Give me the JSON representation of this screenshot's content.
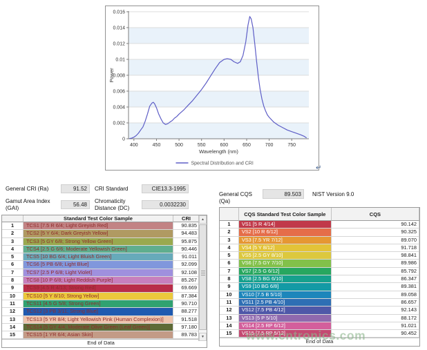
{
  "watermark": "www.cntronics.com",
  "chart": {
    "return_mark": "↵"
  },
  "chart_data": {
    "type": "line",
    "title": "",
    "xlabel": "Wavelength (nm)",
    "ylabel": "Power",
    "xlim": [
      388,
      788
    ],
    "ylim": [
      0,
      0.016
    ],
    "x_ticks": [
      400,
      450,
      500,
      550,
      600,
      650,
      700,
      750
    ],
    "y_ticks": [
      0,
      0.002,
      0.004,
      0.006,
      0.008,
      0.01,
      0.012,
      0.014,
      0.016
    ],
    "legend": [
      "Spectral Distribution and CRI"
    ],
    "legend_position": "bottom-center",
    "grid": "horizontal",
    "line_color": "#5d5dc6",
    "band_color": "#e9f2fa",
    "series": [
      {
        "name": "Spectral Distribution and CRI",
        "points": [
          [
            390,
            3e-05
          ],
          [
            395,
            8e-05
          ],
          [
            400,
            0.0002
          ],
          [
            405,
            0.0004
          ],
          [
            410,
            0.0007
          ],
          [
            415,
            0.0011
          ],
          [
            420,
            0.0015
          ],
          [
            425,
            0.0022
          ],
          [
            430,
            0.0031
          ],
          [
            435,
            0.0041
          ],
          [
            440,
            0.0045
          ],
          [
            443,
            0.0046
          ],
          [
            446,
            0.0044
          ],
          [
            450,
            0.0039
          ],
          [
            455,
            0.0031
          ],
          [
            460,
            0.0025
          ],
          [
            465,
            0.002
          ],
          [
            470,
            0.0018
          ],
          [
            475,
            0.0019
          ],
          [
            480,
            0.0021
          ],
          [
            485,
            0.0023
          ],
          [
            490,
            0.0026
          ],
          [
            495,
            0.0028
          ],
          [
            500,
            0.0031
          ],
          [
            510,
            0.0036
          ],
          [
            520,
            0.0042
          ],
          [
            530,
            0.0048
          ],
          [
            540,
            0.0055
          ],
          [
            550,
            0.0062
          ],
          [
            560,
            0.007
          ],
          [
            570,
            0.0079
          ],
          [
            580,
            0.0088
          ],
          [
            590,
            0.0096
          ],
          [
            600,
            0.01
          ],
          [
            607,
            0.0101
          ],
          [
            615,
            0.01
          ],
          [
            622,
            0.0097
          ],
          [
            630,
            0.0095
          ],
          [
            636,
            0.0097
          ],
          [
            642,
            0.0105
          ],
          [
            648,
            0.0122
          ],
          [
            653,
            0.0143
          ],
          [
            657,
            0.0154
          ],
          [
            660,
            0.0151
          ],
          [
            664,
            0.014
          ],
          [
            668,
            0.012
          ],
          [
            672,
            0.0098
          ],
          [
            676,
            0.0078
          ],
          [
            680,
            0.0062
          ],
          [
            684,
            0.005
          ],
          [
            688,
            0.0041
          ],
          [
            692,
            0.0035
          ],
          [
            696,
            0.003
          ],
          [
            700,
            0.0027
          ],
          [
            710,
            0.0021
          ],
          [
            720,
            0.0017
          ],
          [
            730,
            0.0014
          ],
          [
            740,
            0.0011
          ],
          [
            750,
            0.0009
          ],
          [
            760,
            0.0007
          ],
          [
            770,
            0.0005
          ],
          [
            778,
            0.0003
          ],
          [
            783,
            0.0001
          ]
        ]
      }
    ]
  },
  "summary": {
    "general_cri_label": "General CRI (Ra)",
    "general_cri_value": "91.52",
    "cri_standard_label": "CRI Standard",
    "cri_standard_value": "CIE13.3-1995",
    "gamut_label": "Gamut Area Index (GAI)",
    "gamut_value": "56.48",
    "chromaticity_label": "Chromaticity Distance (DC)",
    "chromaticity_value": "0.0032230",
    "general_cqs_label": "General CQS (Qa)",
    "general_cqs_value": "89.503",
    "nist_version": "NIST Version 9.0"
  },
  "cri_table": {
    "headers": [
      "",
      "Standard Test Color Sample",
      "CRI"
    ],
    "end_of_data": "End of Data",
    "text_color": "#8f2a2a",
    "rows": [
      {
        "num": "1",
        "sample": "TCS1 [7.5 R 6/4; Light Greyish Red]",
        "value": "90.835",
        "color": "#c28384"
      },
      {
        "num": "2",
        "sample": "TCS2 [5 Y 6/4; Dark Greyish Yellow]",
        "value": "94.483",
        "color": "#b09a62"
      },
      {
        "num": "3",
        "sample": "TCS3 [5 GY 6/8; Strong Yellow Green]",
        "value": "95.875",
        "color": "#99a94e"
      },
      {
        "num": "4",
        "sample": "TCS4 [2.5 G 6/6; Moderate Yellowish Green]",
        "value": "90.446",
        "color": "#5fae8e"
      },
      {
        "num": "5",
        "sample": "TCS5 [10 BG 6/4; Light Bluish Green]",
        "value": "91.011",
        "color": "#67aaba"
      },
      {
        "num": "6",
        "sample": "TCS6 [5 PB 6/8; Light Blue]",
        "value": "92.099",
        "color": "#8097dc"
      },
      {
        "num": "7",
        "sample": "TCS7 [2.5 P 6/8; Light Violet]",
        "value": "92.108",
        "color": "#9f90de"
      },
      {
        "num": "8",
        "sample": "TCS8 [10 P 6/8; Light Reddish Purple]",
        "value": "85.267",
        "color": "#c77fbd"
      },
      {
        "num": "9",
        "sample": "TCS9 [4.5 R 4/13; Strong Red]",
        "value": "69.669",
        "color": "#b92d49"
      },
      {
        "num": "10",
        "sample": "TCS10 [5 Y 8/10; Strong Yellow]",
        "value": "87.384",
        "color": "#ecc93c"
      },
      {
        "num": "11",
        "sample": "TCS11 [4.5 G 5/8; Strong Green]",
        "value": "90.710",
        "color": "#30a271"
      },
      {
        "num": "12",
        "sample": "TCS12 [3 PB 3/11; Strong Blue]",
        "value": "88.277",
        "color": "#1f5ab0"
      },
      {
        "num": "13",
        "sample": "TCS13 [5 YR 8/4; Light Yellowish Pink (Human Complexion)]",
        "value": "91.518",
        "color": "#edc4ad"
      },
      {
        "num": "14",
        "sample": "TCS14 [5 GY 4/4; Moderate Olive Green (Leaf Green)]",
        "value": "97.180",
        "color": "#5e6b37"
      },
      {
        "num": "15",
        "sample": "TCS15 [1 YR 6/4; Asian Skin]",
        "value": "89.783",
        "color": "#c39b86"
      }
    ]
  },
  "cqs_table": {
    "headers": [
      "",
      "CQS Standard Test Color Sample",
      "CQS"
    ],
    "end_of_data": "End of Data",
    "text_color": "#ffffff",
    "rows": [
      {
        "num": "1",
        "sample": "VS1 [5 R 4/14]",
        "value": "90.142",
        "color": "#c1394a"
      },
      {
        "num": "2",
        "sample": "VS2 [10 R 6/12]",
        "value": "90.325",
        "color": "#e56d49"
      },
      {
        "num": "3",
        "sample": "VS3 [7.5 YR 7/12]",
        "value": "89.070",
        "color": "#e69733"
      },
      {
        "num": "4",
        "sample": "VS4 [5 Y 8/12]",
        "value": "91.718",
        "color": "#e3c338"
      },
      {
        "num": "5",
        "sample": "VS5 [2.5 GY 8/10]",
        "value": "98.841",
        "color": "#dcc83e"
      },
      {
        "num": "6",
        "sample": "VS6 [7.5 GY 7/10]",
        "value": "89.986",
        "color": "#82c14a"
      },
      {
        "num": "7",
        "sample": "VS7 [2.5 G 6/12]",
        "value": "85.792",
        "color": "#27a75f"
      },
      {
        "num": "8",
        "sample": "VS8 [2.5 BG 6/10]",
        "value": "86.347",
        "color": "#16a18d"
      },
      {
        "num": "9",
        "sample": "VS9 [10 BG 6/8]",
        "value": "89.381",
        "color": "#139aa5"
      },
      {
        "num": "10",
        "sample": "VS10 [7.5 B 5/10]",
        "value": "89.058",
        "color": "#1d86bb"
      },
      {
        "num": "11",
        "sample": "VS11 [2.5 PB 4/10]",
        "value": "86.657",
        "color": "#2e6fb4"
      },
      {
        "num": "12",
        "sample": "VS12 [7.5 PB 4/12]",
        "value": "92.143",
        "color": "#4f58a8"
      },
      {
        "num": "13",
        "sample": "VS13 [5 P 5/10]",
        "value": "88.172",
        "color": "#9069ae"
      },
      {
        "num": "14",
        "sample": "VS14 [2.5 RP 6/12]",
        "value": "91.021",
        "color": "#d35f9c"
      },
      {
        "num": "15",
        "sample": "VS15 [7.5 RP 5/12]",
        "value": "90.452",
        "color": "#c44a72"
      }
    ]
  }
}
